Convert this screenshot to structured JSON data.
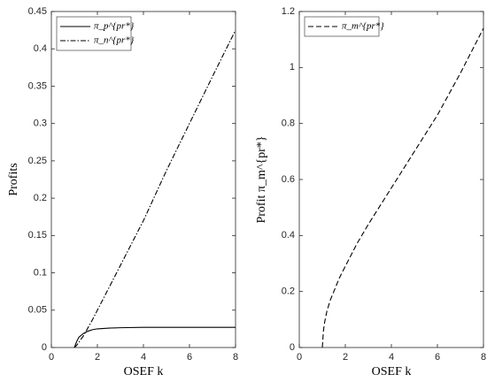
{
  "chart_data": [
    {
      "type": "line",
      "xlabel": "OSEF k",
      "ylabel": "Profits",
      "x": [
        1,
        1.1,
        1.2,
        1.4,
        1.6,
        1.8,
        2,
        2.5,
        3,
        4,
        5,
        6,
        7,
        8
      ],
      "series": [
        {
          "name": "π_p^{pr*}",
          "color": "#000000",
          "linestyle": "solid",
          "values": [
            0,
            0.008,
            0.014,
            0.019,
            0.022,
            0.024,
            0.025,
            0.026,
            0.0265,
            0.027,
            0.027,
            0.027,
            0.027,
            0.027
          ]
        },
        {
          "name": "π_n^{pr*}",
          "color": "#000000",
          "linestyle": "dashdot",
          "values": [
            0,
            0.003,
            0.007,
            0.016,
            0.027,
            0.038,
            0.05,
            0.08,
            0.11,
            0.17,
            0.237,
            0.3,
            0.363,
            0.425
          ]
        }
      ],
      "xlim": [
        0,
        8
      ],
      "xticks": [
        0,
        2,
        4,
        6,
        8
      ],
      "ylim": [
        0,
        0.45
      ],
      "yticks": [
        0,
        0.05,
        0.1,
        0.15,
        0.2,
        0.25,
        0.3,
        0.35,
        0.4,
        0.45
      ],
      "legend": "upper left"
    },
    {
      "type": "line",
      "xlabel": "OSEF k",
      "ylabel": "Profit π_m^{pr*}",
      "x": [
        1,
        1.05,
        1.1,
        1.2,
        1.35,
        1.5,
        1.75,
        2,
        2.5,
        3,
        4,
        5,
        6,
        7,
        8
      ],
      "series": [
        {
          "name": "π_m^{pr*}",
          "color": "#000000",
          "linestyle": "dashed",
          "values": [
            0,
            0.06,
            0.09,
            0.13,
            0.17,
            0.2,
            0.25,
            0.29,
            0.37,
            0.44,
            0.57,
            0.7,
            0.83,
            0.98,
            1.14
          ]
        }
      ],
      "xlim": [
        0,
        8
      ],
      "xticks": [
        0,
        2,
        4,
        6,
        8
      ],
      "ylim": [
        0,
        1.2
      ],
      "yticks": [
        0,
        0.2,
        0.4,
        0.6,
        0.8,
        1,
        1.2
      ],
      "legend": "upper left"
    }
  ]
}
